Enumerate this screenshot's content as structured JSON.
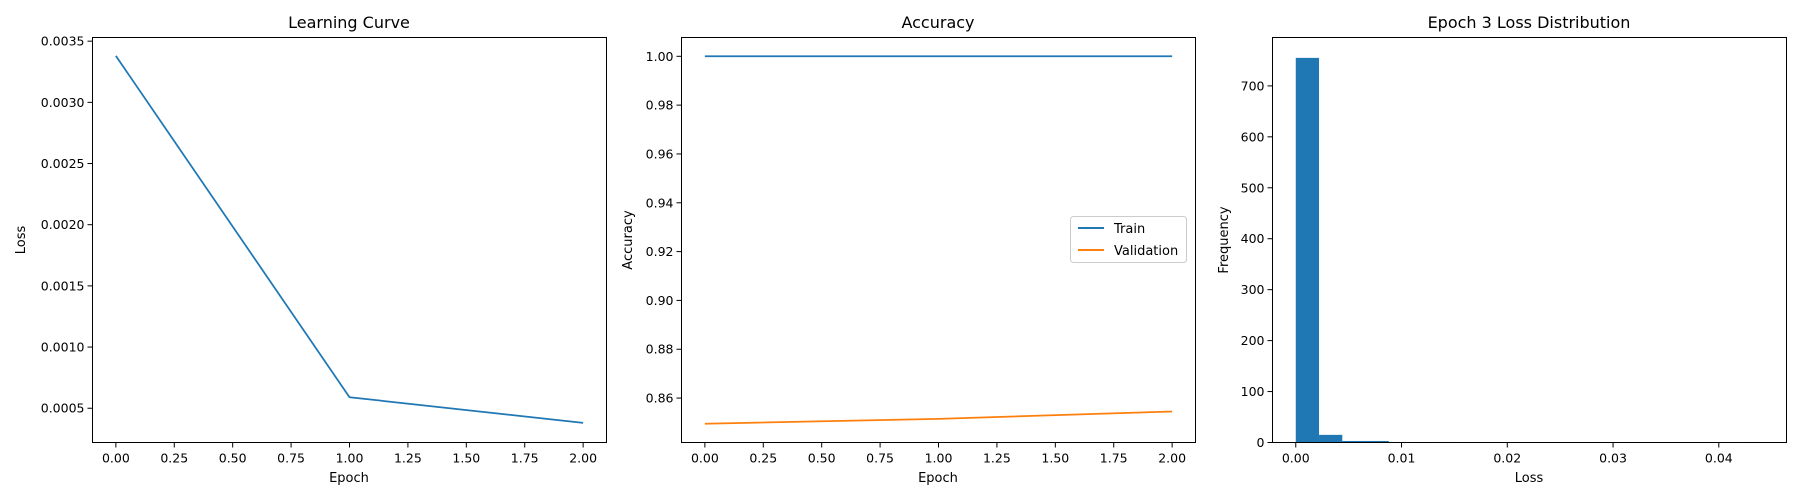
{
  "colors": {
    "series1": "#1f77b4",
    "series2": "#ff7f0e",
    "axis": "#000000",
    "legend_border": "#cccccc"
  },
  "chart_data": [
    {
      "type": "line",
      "title": "Learning Curve",
      "xlabel": "Epoch",
      "ylabel": "Loss",
      "xlim": [
        -0.1,
        2.1
      ],
      "ylim": [
        0.00022,
        0.00353
      ],
      "xticks": [
        0.0,
        0.25,
        0.5,
        0.75,
        1.0,
        1.25,
        1.5,
        1.75,
        2.0
      ],
      "xtick_labels": [
        "0.00",
        "0.25",
        "0.50",
        "0.75",
        "1.00",
        "1.25",
        "1.50",
        "1.75",
        "2.00"
      ],
      "yticks": [
        0.0005,
        0.001,
        0.0015,
        0.002,
        0.0025,
        0.003,
        0.0035
      ],
      "ytick_labels": [
        "0.0005",
        "0.0010",
        "0.0015",
        "0.0020",
        "0.0025",
        "0.0030",
        "0.0035"
      ],
      "series": [
        {
          "name": "Loss",
          "x": [
            0,
            1,
            2
          ],
          "values": [
            0.00338,
            0.00059,
            0.00038
          ]
        }
      ]
    },
    {
      "type": "line",
      "title": "Accuracy",
      "xlabel": "Epoch",
      "ylabel": "Accuracy",
      "xlim": [
        -0.1,
        2.1
      ],
      "ylim": [
        0.8418,
        1.0077
      ],
      "xticks": [
        0.0,
        0.25,
        0.5,
        0.75,
        1.0,
        1.25,
        1.5,
        1.75,
        2.0
      ],
      "xtick_labels": [
        "0.00",
        "0.25",
        "0.50",
        "0.75",
        "1.00",
        "1.25",
        "1.50",
        "1.75",
        "2.00"
      ],
      "yticks": [
        0.86,
        0.88,
        0.9,
        0.92,
        0.94,
        0.96,
        0.98,
        1.0
      ],
      "ytick_labels": [
        "0.86",
        "0.88",
        "0.90",
        "0.92",
        "0.94",
        "0.96",
        "0.98",
        "1.00"
      ],
      "legend_position": "center-right",
      "series": [
        {
          "name": "Train",
          "x": [
            0,
            1,
            2
          ],
          "values": [
            1.0,
            1.0,
            1.0
          ]
        },
        {
          "name": "Validation",
          "x": [
            0,
            1,
            2
          ],
          "values": [
            0.8495,
            0.8515,
            0.8545
          ]
        }
      ]
    },
    {
      "type": "bar",
      "title": "Epoch 3 Loss Distribution",
      "xlabel": "Loss",
      "ylabel": "Frequency",
      "xlim": [
        -0.0022,
        0.0464
      ],
      "ylim": [
        0,
        795
      ],
      "xticks": [
        0.0,
        0.01,
        0.02,
        0.03,
        0.04
      ],
      "xtick_labels": [
        "0.00",
        "0.01",
        "0.02",
        "0.03",
        "0.04"
      ],
      "yticks": [
        0,
        100,
        200,
        300,
        400,
        500,
        600,
        700
      ],
      "ytick_labels": [
        "0",
        "100",
        "200",
        "300",
        "400",
        "500",
        "600",
        "700"
      ],
      "bin_edges": [
        0.0,
        0.0022,
        0.0044,
        0.0066,
        0.0088,
        0.011,
        0.0132,
        0.0154,
        0.0176,
        0.0198,
        0.022,
        0.0242,
        0.0264,
        0.0286,
        0.0308,
        0.033,
        0.0352,
        0.0374,
        0.0396,
        0.0418,
        0.044
      ],
      "values": [
        755,
        15,
        3,
        3,
        1,
        0,
        1,
        0,
        0,
        0,
        0,
        0,
        0,
        0,
        0,
        0,
        0,
        0,
        0,
        1
      ]
    }
  ]
}
